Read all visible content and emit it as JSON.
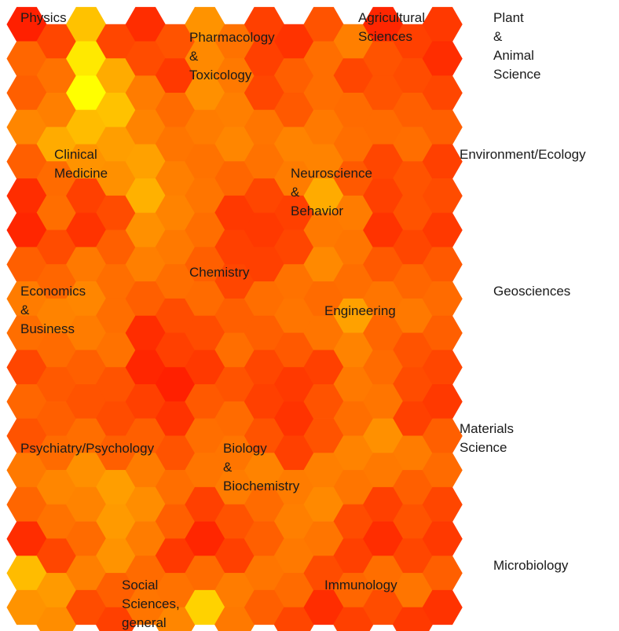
{
  "chart_data": {
    "type": "heatmap",
    "grid": {
      "cols": 15,
      "rows": 18,
      "shape": "hexagon"
    },
    "color_scale": {
      "low": "#ff0000",
      "high": "#ffff00",
      "stops": [
        "#ff0000",
        "#ff6a00",
        "#ffa200",
        "#ffff00"
      ]
    },
    "values": [
      [
        0.1,
        0.22,
        0.78,
        0.22,
        0.14,
        0.26,
        0.58,
        0.38,
        0.2,
        0.16,
        0.26,
        0.46,
        0.12,
        0.2,
        0.18
      ],
      [
        0.32,
        0.38,
        0.92,
        0.7,
        0.24,
        0.18,
        0.52,
        0.42,
        0.2,
        0.3,
        0.36,
        0.22,
        0.26,
        0.24,
        0.14
      ],
      [
        0.3,
        0.46,
        1.0,
        0.78,
        0.44,
        0.34,
        0.56,
        0.46,
        0.22,
        0.28,
        0.36,
        0.34,
        0.26,
        0.3,
        0.22
      ],
      [
        0.5,
        0.7,
        0.76,
        0.64,
        0.48,
        0.4,
        0.44,
        0.5,
        0.4,
        0.48,
        0.42,
        0.36,
        0.34,
        0.36,
        0.3
      ],
      [
        0.3,
        0.34,
        0.58,
        0.56,
        0.66,
        0.46,
        0.38,
        0.32,
        0.38,
        0.44,
        0.48,
        0.28,
        0.22,
        0.26,
        0.2
      ],
      [
        0.14,
        0.36,
        0.2,
        0.24,
        0.72,
        0.48,
        0.4,
        0.18,
        0.22,
        0.2,
        0.7,
        0.44,
        0.2,
        0.26,
        0.24
      ],
      [
        0.12,
        0.24,
        0.16,
        0.3,
        0.56,
        0.42,
        0.36,
        0.2,
        0.18,
        0.22,
        0.42,
        0.4,
        0.16,
        0.22,
        0.18
      ],
      [
        0.3,
        0.32,
        0.42,
        0.36,
        0.46,
        0.36,
        0.3,
        0.22,
        0.2,
        0.38,
        0.52,
        0.36,
        0.28,
        0.32,
        0.28
      ],
      [
        0.44,
        0.48,
        0.5,
        0.36,
        0.3,
        0.24,
        0.34,
        0.3,
        0.36,
        0.4,
        0.34,
        0.66,
        0.4,
        0.42,
        0.34
      ],
      [
        0.36,
        0.34,
        0.44,
        0.38,
        0.14,
        0.2,
        0.24,
        0.36,
        0.3,
        0.28,
        0.4,
        0.48,
        0.32,
        0.26,
        0.3
      ],
      [
        0.22,
        0.28,
        0.3,
        0.26,
        0.12,
        0.1,
        0.18,
        0.26,
        0.22,
        0.18,
        0.2,
        0.42,
        0.34,
        0.24,
        0.22
      ],
      [
        0.32,
        0.3,
        0.26,
        0.24,
        0.2,
        0.16,
        0.28,
        0.34,
        0.2,
        0.16,
        0.26,
        0.36,
        0.4,
        0.2,
        0.18
      ],
      [
        0.26,
        0.34,
        0.36,
        0.3,
        0.3,
        0.26,
        0.36,
        0.4,
        0.26,
        0.2,
        0.26,
        0.48,
        0.56,
        0.44,
        0.3
      ],
      [
        0.42,
        0.5,
        0.56,
        0.64,
        0.44,
        0.36,
        0.4,
        0.44,
        0.48,
        0.44,
        0.46,
        0.4,
        0.42,
        0.3,
        0.34
      ],
      [
        0.32,
        0.38,
        0.48,
        0.62,
        0.54,
        0.3,
        0.2,
        0.26,
        0.34,
        0.46,
        0.52,
        0.24,
        0.2,
        0.26,
        0.22
      ],
      [
        0.14,
        0.22,
        0.34,
        0.58,
        0.44,
        0.18,
        0.12,
        0.2,
        0.3,
        0.42,
        0.4,
        0.2,
        0.14,
        0.22,
        0.18
      ],
      [
        0.76,
        0.62,
        0.46,
        0.3,
        0.34,
        0.38,
        0.34,
        0.44,
        0.4,
        0.34,
        0.24,
        0.32,
        0.36,
        0.4,
        0.3
      ],
      [
        0.58,
        0.54,
        0.24,
        0.2,
        0.4,
        0.5,
        0.84,
        0.42,
        0.3,
        0.22,
        0.14,
        0.2,
        0.24,
        0.18,
        0.16
      ]
    ],
    "labels": [
      {
        "lines": [
          "Physics"
        ]
      },
      {
        "lines": [
          "Pharmacology",
          "&",
          "Toxicology"
        ]
      },
      {
        "lines": [
          "Agricultural",
          "Sciences"
        ]
      },
      {
        "lines": [
          "Plant",
          "&",
          "Animal",
          "Science"
        ]
      },
      {
        "lines": [
          "Clinical",
          "Medicine"
        ]
      },
      {
        "lines": [
          "Environment/Ecology"
        ]
      },
      {
        "lines": [
          "Neuroscience",
          "&",
          "Behavior"
        ]
      },
      {
        "lines": [
          "Chemistry"
        ]
      },
      {
        "lines": [
          "Economics",
          "&",
          "Business"
        ]
      },
      {
        "lines": [
          "Engineering"
        ]
      },
      {
        "lines": [
          "Geosciences"
        ]
      },
      {
        "lines": [
          "Materials",
          "Science"
        ]
      },
      {
        "lines": [
          "Psychiatry/Psychology"
        ]
      },
      {
        "lines": [
          "Biology",
          "&",
          "Biochemistry"
        ]
      },
      {
        "lines": [
          "Microbiology"
        ]
      },
      {
        "lines": [
          "Immunology"
        ]
      },
      {
        "lines": [
          "Social",
          "Sciences,",
          "general"
        ]
      }
    ],
    "title": "",
    "xlabel": "",
    "ylabel": "",
    "legend": "none",
    "grid_lines": false
  }
}
